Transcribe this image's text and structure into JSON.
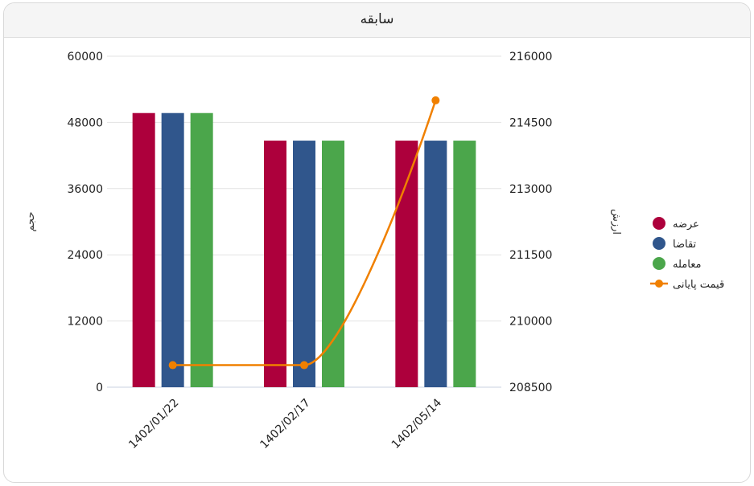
{
  "title": "سابقه",
  "chart_data": {
    "type": "bar",
    "categories": [
      "1402/01/22",
      "1402/02/17",
      "1402/05/14"
    ],
    "series": [
      {
        "name": "عرضه",
        "type": "bar",
        "axis": "left",
        "color": "#ad003c",
        "values": [
          49700,
          44700,
          44700
        ]
      },
      {
        "name": "تقاضا",
        "type": "bar",
        "axis": "left",
        "color": "#30568c",
        "values": [
          49700,
          44700,
          44700
        ]
      },
      {
        "name": "معامله",
        "type": "bar",
        "axis": "left",
        "color": "#4ba64b",
        "values": [
          49700,
          44700,
          44700
        ]
      },
      {
        "name": "قیمت پایانی",
        "type": "line",
        "axis": "right",
        "color": "#f08000",
        "values": [
          209000,
          209000,
          215000
        ]
      }
    ],
    "ylabel_left": "حجم",
    "ylabel_right": "ارزش",
    "ylim_left": [
      0,
      60000
    ],
    "yticks_left": [
      "0",
      "12000",
      "24000",
      "36000",
      "48000",
      "60000"
    ],
    "ylim_right": [
      208500,
      216000
    ],
    "yticks_right": [
      "208500",
      "210000",
      "211500",
      "213000",
      "214500",
      "216000"
    ],
    "legend": "right",
    "grid": true
  }
}
